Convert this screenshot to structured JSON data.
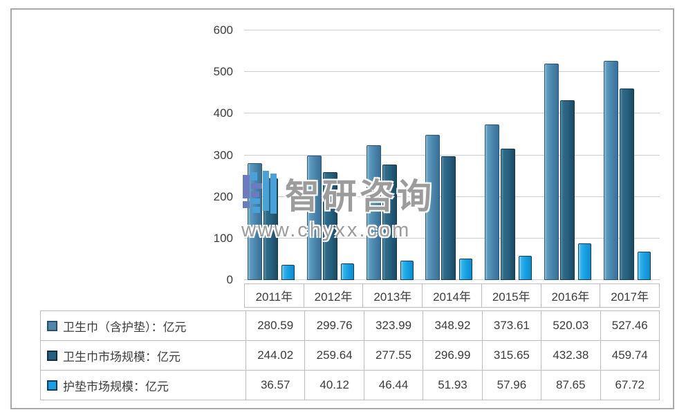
{
  "watermark": {
    "brand": "智研咨询",
    "url": "www.chyxx.com",
    "logo_colors": {
      "periwinkle": "#6b7ac1",
      "blue": "#4aa0d8"
    }
  },
  "chart_data": {
    "type": "bar",
    "title": "",
    "xlabel": "",
    "ylabel": "",
    "categories": [
      "2011年",
      "2012年",
      "2013年",
      "2014年",
      "2015年",
      "2016年",
      "2017年"
    ],
    "series": [
      {
        "name": "卫生巾（含护垫）：亿元",
        "color": "#4e86ac",
        "swatch_border": "#2c4f66",
        "values": [
          280.59,
          299.76,
          323.99,
          348.92,
          373.61,
          520.03,
          527.46
        ]
      },
      {
        "name": "卫生巾市场规模：亿元",
        "color": "#27607f",
        "swatch_border": "#122e40",
        "values": [
          244.02,
          259.64,
          277.55,
          296.99,
          315.65,
          432.38,
          459.74
        ]
      },
      {
        "name": "护垫市场规模：亿元",
        "color": "#18a0e3",
        "swatch_border": "#123c5c",
        "values": [
          36.57,
          40.12,
          46.44,
          51.93,
          57.96,
          87.65,
          67.72
        ]
      }
    ],
    "ylim": [
      0,
      600
    ],
    "yticks": [
      0,
      100,
      200,
      300,
      400,
      500,
      600
    ],
    "grid": true,
    "legend_position": "bottom-table"
  }
}
